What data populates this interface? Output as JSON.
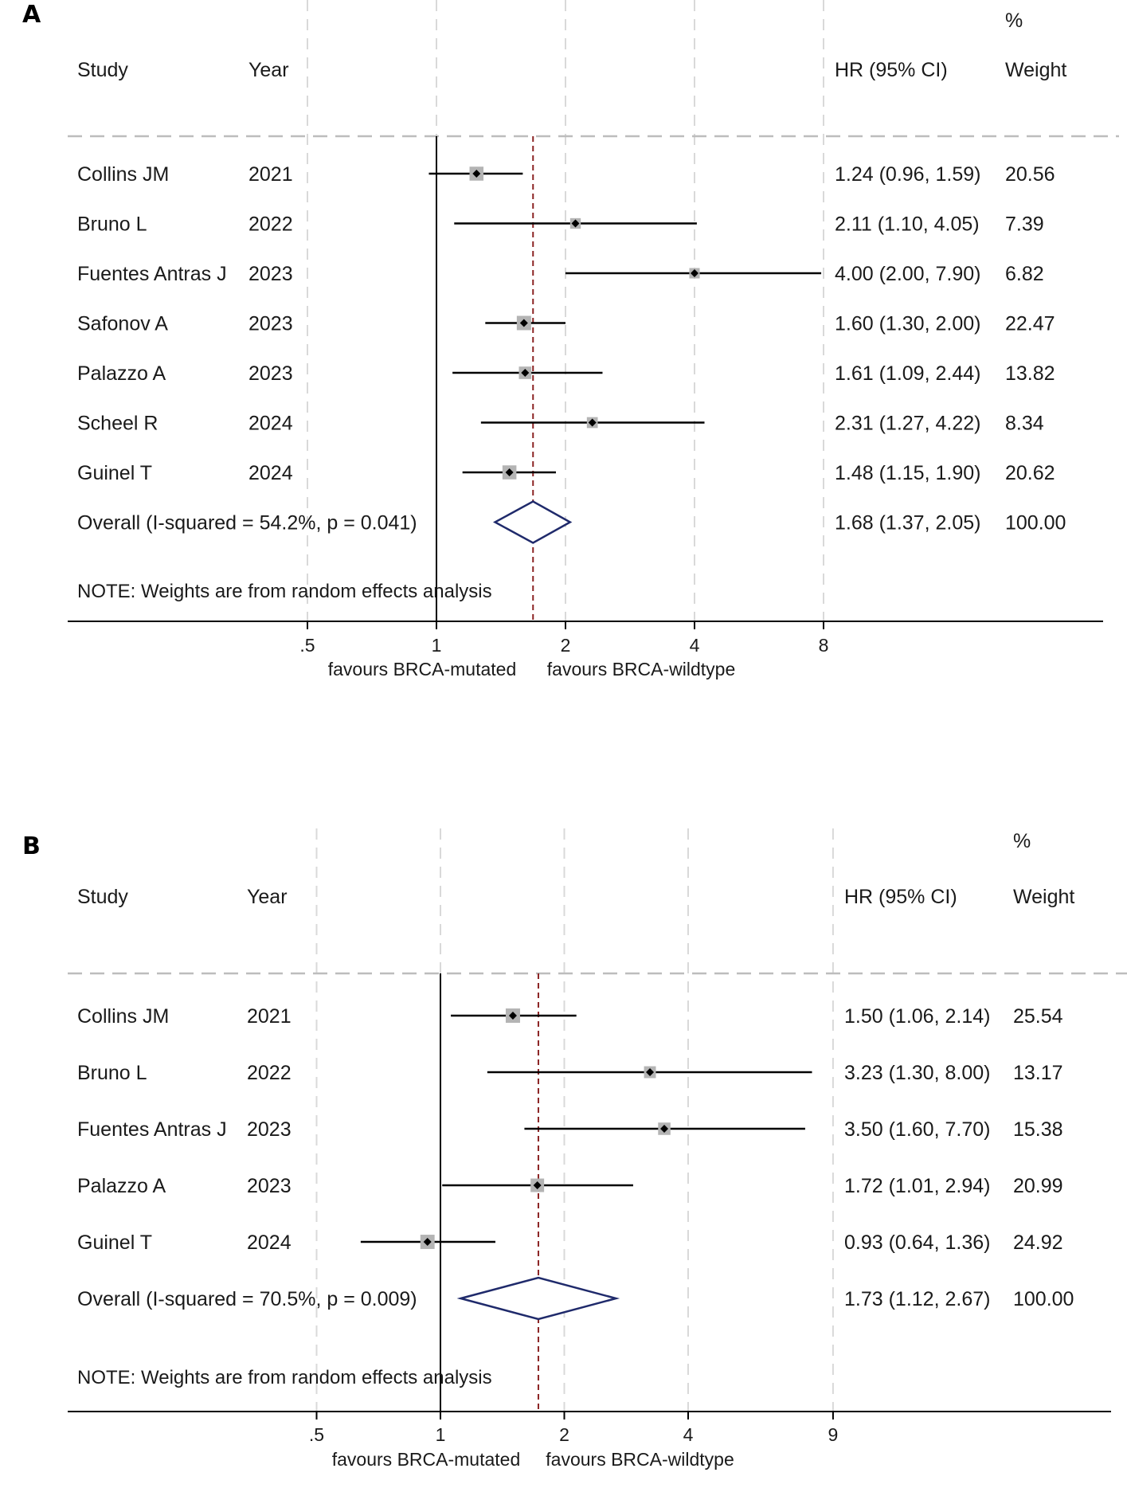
{
  "chart_data": [
    {
      "panel": "A",
      "type": "forest",
      "headers": {
        "study": "Study",
        "year": "Year",
        "hr": "HR (95% CI)",
        "pct": "%",
        "weight": "Weight"
      },
      "studies": [
        {
          "study": "Collins JM",
          "year": "2021",
          "hr": 1.24,
          "lo": 0.96,
          "hi": 1.59,
          "hr_text": "1.24 (0.96, 1.59)",
          "weight": 20.56,
          "weight_text": "20.56"
        },
        {
          "study": "Bruno L",
          "year": "2022",
          "hr": 2.11,
          "lo": 1.1,
          "hi": 4.05,
          "hr_text": "2.11 (1.10, 4.05)",
          "weight": 7.39,
          "weight_text": "7.39"
        },
        {
          "study": "Fuentes Antras J",
          "year": "2023",
          "hr": 4.0,
          "lo": 2.0,
          "hi": 7.9,
          "hr_text": "4.00 (2.00, 7.90)",
          "weight": 6.82,
          "weight_text": "6.82"
        },
        {
          "study": "Safonov A",
          "year": "2023",
          "hr": 1.6,
          "lo": 1.3,
          "hi": 2.0,
          "hr_text": "1.60 (1.30, 2.00)",
          "weight": 22.47,
          "weight_text": "22.47"
        },
        {
          "study": "Palazzo A",
          "year": "2023",
          "hr": 1.61,
          "lo": 1.09,
          "hi": 2.44,
          "hr_text": "1.61 (1.09, 2.44)",
          "weight": 13.82,
          "weight_text": "13.82"
        },
        {
          "study": "Scheel R",
          "year": "2024",
          "hr": 2.31,
          "lo": 1.27,
          "hi": 4.22,
          "hr_text": "2.31 (1.27, 4.22)",
          "weight": 8.34,
          "weight_text": "8.34"
        },
        {
          "study": "Guinel T",
          "year": "2024",
          "hr": 1.48,
          "lo": 1.15,
          "hi": 1.9,
          "hr_text": "1.48 (1.15, 1.90)",
          "weight": 20.62,
          "weight_text": "20.62"
        }
      ],
      "overall": {
        "label": "Overall  (I-squared = 54.2%, p = 0.041)",
        "hr": 1.68,
        "lo": 1.37,
        "hi": 2.05,
        "hr_text": "1.68 (1.37, 2.05)",
        "weight_text": "100.00"
      },
      "note": "NOTE: Weights are from random effects analysis",
      "ticks": [
        {
          "value": 0.5,
          "label": ".5"
        },
        {
          "value": 1,
          "label": "1"
        },
        {
          "value": 2,
          "label": "2"
        },
        {
          "value": 4,
          "label": "4"
        },
        {
          "value": 8,
          "label": "8"
        }
      ],
      "xlim": [
        0.125,
        8
      ],
      "x_scale": "log",
      "favour_left": "favours BRCA-mutated",
      "favour_right": "favours BRCA-wildtype",
      "colors": {
        "line": "#000000",
        "box": "#b4b4b4",
        "diamond": "#1f2a6b",
        "ref": "#8b2323",
        "grid": "#d9d9d9"
      }
    },
    {
      "panel": "B",
      "type": "forest",
      "headers": {
        "study": "Study",
        "year": "Year",
        "hr": "HR (95% CI)",
        "pct": "%",
        "weight": "Weight"
      },
      "studies": [
        {
          "study": "Collins JM",
          "year": "2021",
          "hr": 1.5,
          "lo": 1.06,
          "hi": 2.14,
          "hr_text": "1.50 (1.06, 2.14)",
          "weight": 25.54,
          "weight_text": "25.54"
        },
        {
          "study": "Bruno L",
          "year": "2022",
          "hr": 3.23,
          "lo": 1.3,
          "hi": 8.0,
          "hr_text": "3.23 (1.30, 8.00)",
          "weight": 13.17,
          "weight_text": "13.17"
        },
        {
          "study": "Fuentes Antras J",
          "year": "2023",
          "hr": 3.5,
          "lo": 1.6,
          "hi": 7.7,
          "hr_text": "3.50 (1.60, 7.70)",
          "weight": 15.38,
          "weight_text": "15.38"
        },
        {
          "study": "Palazzo A",
          "year": "2023",
          "hr": 1.72,
          "lo": 1.01,
          "hi": 2.94,
          "hr_text": "1.72 (1.01, 2.94)",
          "weight": 20.99,
          "weight_text": "20.99"
        },
        {
          "study": "Guinel T",
          "year": "2024",
          "hr": 0.93,
          "lo": 0.64,
          "hi": 1.36,
          "hr_text": "0.93 (0.64, 1.36)",
          "weight": 24.92,
          "weight_text": "24.92"
        }
      ],
      "overall": {
        "label": "Overall  (I-squared = 70.5%, p = 0.009)",
        "hr": 1.73,
        "lo": 1.12,
        "hi": 2.67,
        "hr_text": "1.73 (1.12, 2.67)",
        "weight_text": "100.00"
      },
      "note": "NOTE: Weights are from random effects analysis",
      "ticks": [
        {
          "value": 0.5,
          "label": ".5"
        },
        {
          "value": 1,
          "label": "1"
        },
        {
          "value": 2,
          "label": "2"
        },
        {
          "value": 4,
          "label": "4"
        },
        {
          "value": 9,
          "label": "9"
        }
      ],
      "xlim": [
        0.125,
        9
      ],
      "x_scale": "log",
      "favour_left": "favours BRCA-mutated",
      "favour_right": "favours BRCA-wildtype",
      "colors": {
        "line": "#000000",
        "box": "#b4b4b4",
        "diamond": "#1f2a6b",
        "ref": "#8b2323",
        "grid": "#d9d9d9"
      }
    }
  ]
}
